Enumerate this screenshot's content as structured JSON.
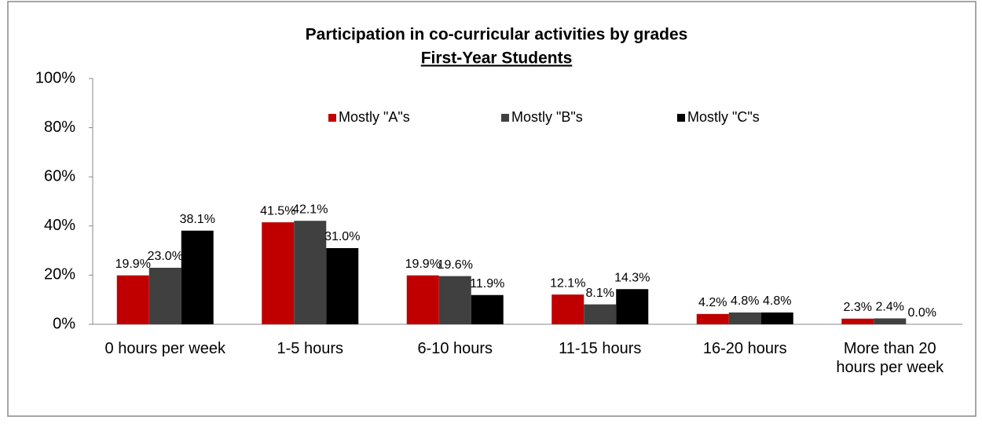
{
  "chart_data": {
    "type": "bar",
    "title": "Participation in co-curricular activities by grades",
    "subtitle": "First-Year Students",
    "categories": [
      "0 hours per week",
      "1-5 hours",
      "6-10 hours",
      "11-15 hours",
      "16-20 hours",
      "More than 20 hours per week"
    ],
    "series": [
      {
        "name": "Mostly \"A\"s",
        "color": "#c00000",
        "values": [
          19.9,
          41.5,
          19.9,
          12.1,
          4.2,
          2.3
        ],
        "value_labels": [
          "19.9%",
          "41.5%",
          "19.9%",
          "12.1%",
          "4.2%",
          "2.3%"
        ]
      },
      {
        "name": "Mostly \"B\"s",
        "color": "#404040",
        "values": [
          23.0,
          42.1,
          19.6,
          8.1,
          4.8,
          2.4
        ],
        "value_labels": [
          "23.0%",
          "42.1%",
          "19.6%",
          "8.1%",
          "4.8%",
          "2.4%"
        ]
      },
      {
        "name": "Mostly \"C\"s",
        "color": "#000000",
        "values": [
          38.1,
          31.0,
          11.9,
          14.3,
          4.8,
          0.0
        ],
        "value_labels": [
          "38.1%",
          "31.0%",
          "11.9%",
          "14.3%",
          "4.8%",
          "0.0%"
        ]
      }
    ],
    "ylim": [
      0,
      100
    ],
    "yticks": [
      {
        "value": 0,
        "label": "0%"
      },
      {
        "value": 20,
        "label": "20%"
      },
      {
        "value": 40,
        "label": "40%"
      },
      {
        "value": 60,
        "label": "60%"
      },
      {
        "value": 80,
        "label": "80%"
      },
      {
        "value": 100,
        "label": "100%"
      }
    ],
    "legend": "top"
  }
}
